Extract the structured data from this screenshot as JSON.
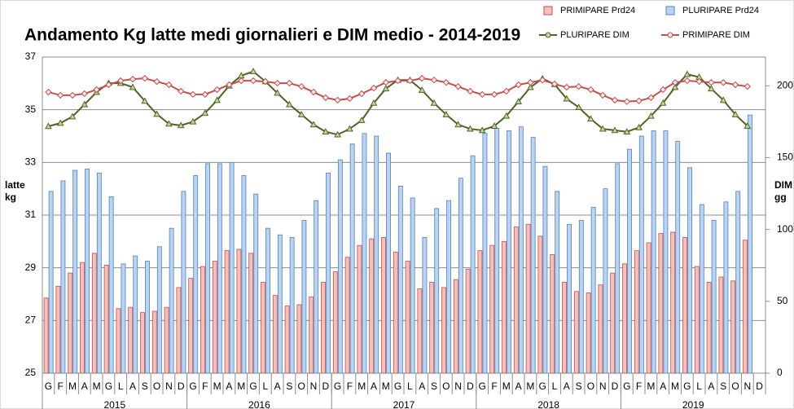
{
  "chart_data": {
    "type": "bar-line",
    "title": "Andamento Kg latte medi giornalieri e DIM medio - 2014-2019",
    "y_label": "latte kg",
    "y2_label": "DIM gg",
    "categories": [
      "G",
      "F",
      "M",
      "A",
      "M",
      "G",
      "L",
      "A",
      "S",
      "O",
      "N",
      "D",
      "G",
      "F",
      "M",
      "A",
      "M",
      "G",
      "L",
      "A",
      "S",
      "O",
      "N",
      "D",
      "G",
      "F",
      "M",
      "A",
      "M",
      "G",
      "L",
      "A",
      "S",
      "O",
      "N",
      "D",
      "G",
      "F",
      "M",
      "A",
      "M",
      "G",
      "L",
      "A",
      "S",
      "O",
      "N",
      "D",
      "G",
      "F",
      "M",
      "A",
      "M",
      "G",
      "L",
      "A",
      "S",
      "O",
      "N",
      "D"
    ],
    "years": [
      "2015",
      "2016",
      "2017",
      "2018",
      "2019"
    ],
    "ylim": [
      25,
      37
    ],
    "yticks": [
      25,
      27,
      29,
      31,
      33,
      35,
      37
    ],
    "y2lim": [
      0,
      220
    ],
    "y2ticks": [
      0,
      50,
      100,
      150,
      200
    ],
    "grid": true,
    "legend": "top-right",
    "series": [
      {
        "name": "PRIMIPARE Prd24",
        "kind": "bar",
        "color": "#c0504d",
        "fill": "#f2c0bd",
        "values": [
          27.85,
          28.3,
          28.8,
          29.2,
          29.55,
          29.1,
          27.45,
          27.5,
          27.3,
          27.35,
          27.5,
          28.25,
          28.6,
          29.05,
          29.25,
          29.65,
          29.7,
          29.55,
          28.45,
          27.95,
          27.55,
          27.6,
          27.9,
          28.45,
          28.85,
          29.4,
          29.85,
          30.1,
          30.15,
          29.6,
          29.25,
          28.2,
          28.45,
          28.25,
          28.55,
          28.95,
          29.65,
          29.85,
          30.0,
          30.55,
          30.65,
          30.2,
          29.5,
          28.45,
          28.1,
          28.05,
          28.35,
          28.8,
          29.15,
          29.65,
          29.95,
          30.3,
          30.35,
          30.15,
          29.05,
          28.45,
          28.65,
          28.5,
          30.05,
          null
        ]
      },
      {
        "name": "PLURIPARE Prd24",
        "kind": "bar",
        "color": "#4f81bd",
        "fill": "#bcd3ef",
        "values": [
          31.9,
          32.3,
          32.7,
          32.75,
          32.6,
          31.7,
          29.15,
          29.45,
          29.25,
          29.8,
          30.5,
          31.9,
          32.5,
          32.95,
          32.95,
          33.0,
          32.5,
          31.8,
          30.5,
          30.25,
          30.15,
          30.8,
          31.55,
          32.6,
          33.1,
          33.7,
          34.1,
          34.0,
          33.35,
          32.1,
          31.65,
          30.15,
          31.25,
          31.55,
          32.4,
          33.25,
          34.1,
          34.3,
          34.2,
          34.35,
          33.95,
          32.85,
          31.9,
          30.65,
          30.8,
          31.3,
          32.0,
          32.95,
          33.5,
          34.0,
          34.2,
          34.2,
          33.8,
          32.8,
          31.4,
          30.8,
          31.5,
          31.9,
          34.8,
          null
        ]
      },
      {
        "name": "PLURIPARE DIM",
        "kind": "line",
        "axis": "y2",
        "color": "#4f6228",
        "fill": "#c4d79b",
        "marker": "triangle",
        "values": [
          171.8,
          174,
          178.6,
          187,
          195.6,
          201.8,
          201.8,
          199,
          189.4,
          180.3,
          173.5,
          172.4,
          175,
          181,
          190,
          200,
          207,
          210,
          203,
          195,
          187,
          180,
          173,
          168,
          166,
          170,
          176,
          188,
          198,
          204,
          204,
          197,
          188,
          180,
          173,
          170,
          169,
          172,
          179,
          189,
          199,
          205,
          201,
          191,
          185,
          177,
          170,
          169,
          168,
          171,
          179,
          188,
          199,
          208,
          206,
          198,
          190,
          180,
          172,
          null
        ]
      },
      {
        "name": "PRIMIPARE DIM",
        "kind": "line",
        "axis": "y2",
        "color": "#c0504d",
        "fill": "#fde9e7",
        "marker": "diamond",
        "values": [
          195.6,
          193.4,
          193.4,
          194.5,
          197.3,
          200.7,
          203.5,
          204.6,
          205.2,
          202.9,
          200.7,
          196.2,
          194,
          194,
          197.3,
          200.7,
          203.5,
          203.5,
          202.9,
          201.8,
          201.8,
          199.5,
          195.6,
          191.7,
          190,
          191.1,
          194.5,
          198.4,
          202.3,
          203.5,
          203.5,
          205.2,
          204,
          202.3,
          199.5,
          196.2,
          194,
          194,
          196.2,
          200.7,
          202.3,
          204,
          201.2,
          199,
          199.5,
          197.3,
          193.4,
          190,
          189,
          189.5,
          191.7,
          197.3,
          202.3,
          203.5,
          203,
          202.3,
          202.3,
          200.7,
          199.5,
          null
        ]
      }
    ]
  }
}
